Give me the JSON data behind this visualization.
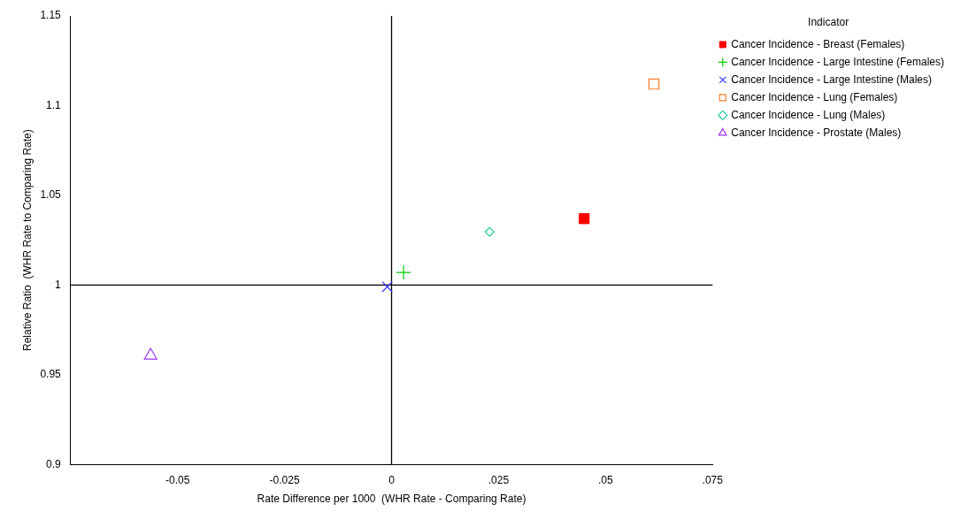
{
  "chart_data": {
    "type": "scatter",
    "xlabel": "Rate Difference per 1000  (WHR Rate - Comparing Rate)",
    "ylabel": "Relative Ratio  (WHR Rate to Comparing Rate)",
    "legend_title": "Indicator",
    "legend": "top right",
    "grid": false,
    "xlim": [
      -0.075,
      0.075
    ],
    "xticks": [
      {
        "value": -0.05,
        "label": "-0.05"
      },
      {
        "value": -0.025,
        "label": "-0.025"
      },
      0,
      {
        "value": 0.025,
        "label": ".025"
      },
      {
        "value": 0.05,
        "label": ".05"
      },
      {
        "value": 0.075,
        "label": ".075"
      }
    ],
    "ylim": [
      0.9,
      1.15
    ],
    "yticks": [
      0.9,
      0.95,
      1,
      1.05,
      1.1,
      1.15
    ],
    "ref_lines": [
      {
        "axis": "x",
        "value": 0,
        "color": "#000000"
      },
      {
        "axis": "y",
        "value": 1,
        "color": "#000000"
      }
    ],
    "series": [
      {
        "name": "Cancer Incidence - Breast (Females)",
        "color": "#ff0000",
        "marker": "square",
        "x": [
          0.045
        ],
        "values": [
          1.037
        ]
      },
      {
        "name": "Cancer Incidence - Large Intestine (Females)",
        "color": "#00cc00",
        "marker": "cross",
        "x": [
          0.0028
        ],
        "values": [
          1.007
        ]
      },
      {
        "name": "Cancer Incidence - Large Intestine (Males)",
        "color": "#3333ff",
        "marker": "x",
        "x": [
          -0.001
        ],
        "values": [
          0.999
        ]
      },
      {
        "name": "Cancer Incidence - Lung (Females)",
        "color": "#ff7f27",
        "marker": "square",
        "x": [
          0.0613
        ],
        "values": [
          1.112
        ]
      },
      {
        "name": "Cancer Incidence - Lung (Males)",
        "color": "#22cc99",
        "marker": "diamond",
        "x": [
          0.0229
        ],
        "values": [
          1.0296
        ]
      },
      {
        "name": "Cancer Incidence - Prostate (Males)",
        "color": "#9933ff",
        "marker": "triangle",
        "x": [
          -0.0563
        ],
        "values": [
          0.9607
        ]
      }
    ]
  }
}
